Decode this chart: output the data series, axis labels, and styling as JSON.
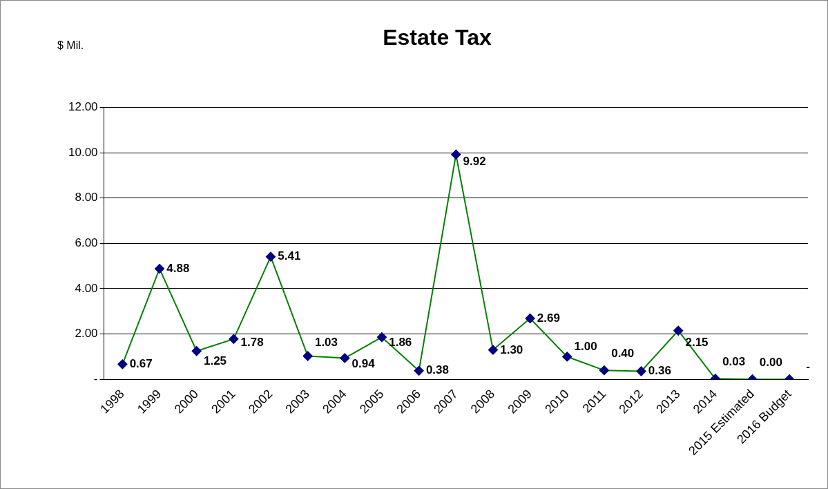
{
  "chart_data": {
    "type": "line",
    "title": "Estate Tax",
    "ylabel": "$ Mil.",
    "categories": [
      "1998",
      "1999",
      "2000",
      "2001",
      "2002",
      "2003",
      "2004",
      "2005",
      "2006",
      "2007",
      "2008",
      "2009",
      "2010",
      "2011",
      "2012",
      "2013",
      "2014",
      "2015 Estimated",
      "2016 Budget"
    ],
    "series": [
      {
        "color": "#008000",
        "colors": [
          "#000080",
          "#000080",
          "#000080",
          "#000080",
          "#000080",
          "#000080",
          "#000080",
          "#000080",
          "#000080",
          "#000080",
          "#000080",
          "#000080",
          "#000080",
          "#000080",
          "#000080",
          "#000080",
          "#000080",
          "#000080",
          "#000080"
        ],
        "values": [
          0.67,
          4.88,
          1.25,
          1.78,
          5.41,
          1.03,
          0.94,
          1.86,
          0.38,
          9.92,
          1.3,
          2.69,
          1.0,
          0.4,
          0.36,
          2.15,
          0.03,
          0.0,
          0.0
        ],
        "value_labels": [
          "0.67",
          "4.88",
          "1.25",
          "1.78",
          "5.41",
          "1.03",
          "0.94",
          "1.86",
          "0.38",
          "9.92",
          "1.30",
          "2.69",
          "1.00",
          "0.40",
          "0.36",
          "2.15",
          "0.03",
          "0.00",
          "-"
        ]
      }
    ],
    "ylim": [
      0,
      12
    ],
    "yticks": [
      {
        "value": 0,
        "label": "-"
      },
      {
        "value": 2,
        "label": "2.00"
      },
      {
        "value": 4,
        "label": "4.00"
      },
      {
        "value": 6,
        "label": "6.00"
      },
      {
        "value": 8,
        "label": "8.00"
      },
      {
        "value": 10,
        "label": "10.00"
      },
      {
        "value": 12,
        "label": "12.00"
      }
    ],
    "grid": "y",
    "marker": "diamond",
    "line_style": "solid",
    "legend": false
  }
}
